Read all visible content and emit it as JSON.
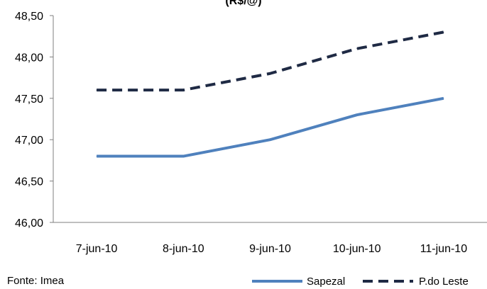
{
  "chart_data": {
    "type": "line",
    "title": "(R$/@)",
    "categories": [
      "7-jun-10",
      "8-jun-10",
      "9-jun-10",
      "10-jun-10",
      "11-jun-10"
    ],
    "series": [
      {
        "name": "Sapezal",
        "values": [
          46.8,
          46.8,
          47.0,
          47.3,
          47.5
        ],
        "color": "#4f81bd",
        "style": "solid"
      },
      {
        "name": "P.do Leste",
        "values": [
          47.6,
          47.6,
          47.8,
          48.1,
          48.3
        ],
        "color": "#1f2a44",
        "style": "dashed"
      }
    ],
    "ylim": [
      46.0,
      48.5
    ],
    "yticks": [
      "46,00",
      "46,50",
      "47,00",
      "47,50",
      "48,00",
      "48,50"
    ],
    "grid": false,
    "legend": "bottom-right",
    "source_note": "Fonte: Imea"
  }
}
